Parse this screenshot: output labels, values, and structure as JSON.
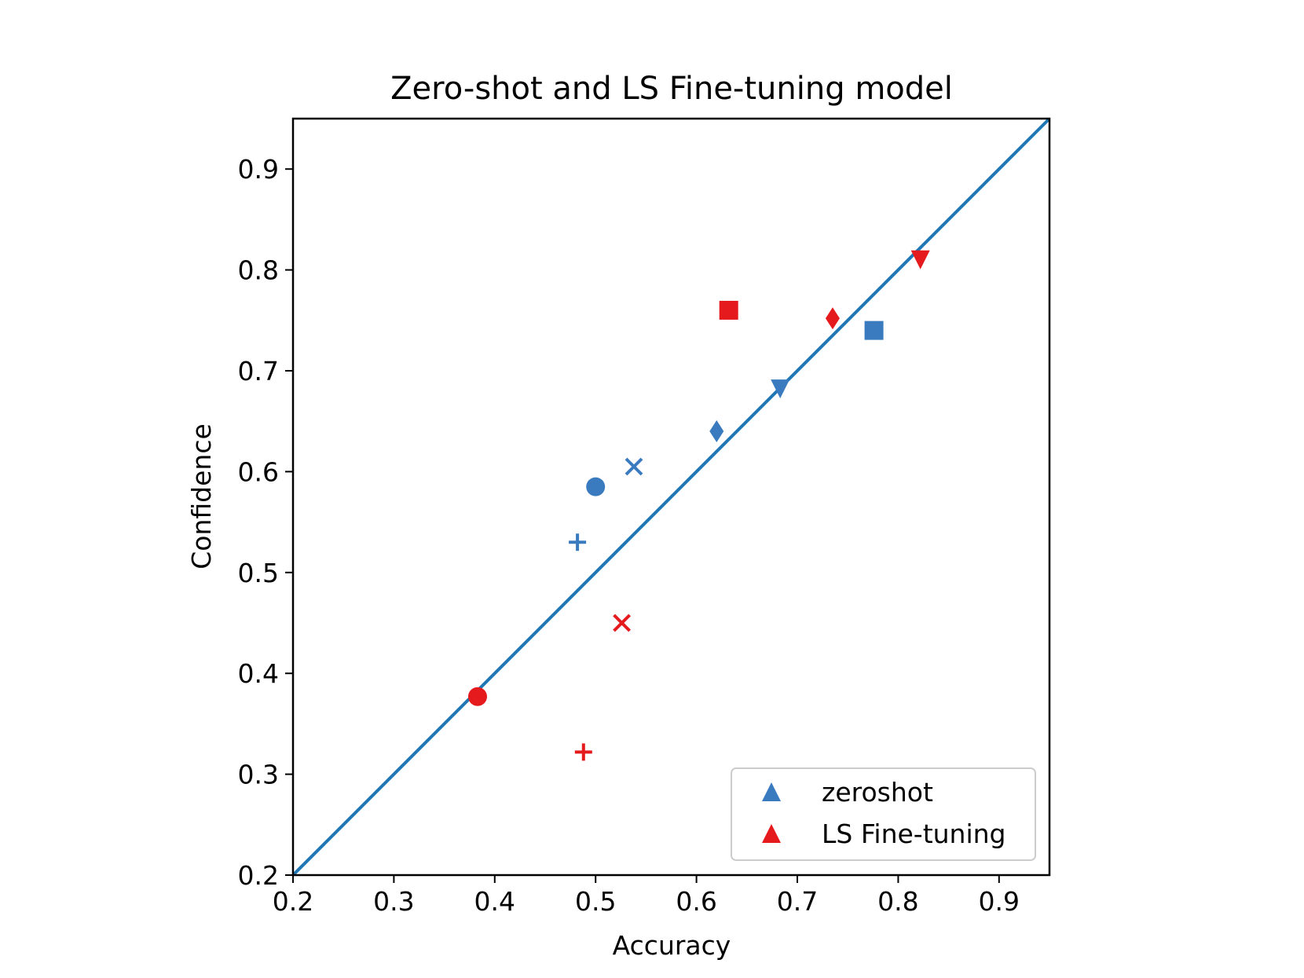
{
  "colors": {
    "zeroshot": "#3a7bbf",
    "ls_finetuning": "#e41a1c",
    "diagonal": "#1f77b4",
    "axes": "#000000",
    "legend_border": "#cccccc"
  },
  "chart_data": {
    "type": "scatter",
    "title": "Zero-shot and LS Fine-tuning model",
    "xlabel": "Accuracy",
    "ylabel": "Confidence",
    "xlim": [
      0.2,
      0.95
    ],
    "ylim": [
      0.2,
      0.95
    ],
    "xticks": [
      0.2,
      0.3,
      0.4,
      0.5,
      0.6,
      0.7,
      0.8,
      0.9
    ],
    "yticks": [
      0.2,
      0.3,
      0.4,
      0.5,
      0.6,
      0.7,
      0.8,
      0.9
    ],
    "xtick_labels": [
      "0.2",
      "0.3",
      "0.4",
      "0.5",
      "0.6",
      "0.7",
      "0.8",
      "0.9"
    ],
    "ytick_labels": [
      "0.2",
      "0.3",
      "0.4",
      "0.5",
      "0.6",
      "0.7",
      "0.8",
      "0.9"
    ],
    "grid": false,
    "reference_line": {
      "x": [
        0.2,
        0.95
      ],
      "y": [
        0.2,
        0.95
      ]
    },
    "legend_position": "lower-right",
    "series": [
      {
        "name": "zeroshot",
        "color_key": "zeroshot",
        "legend_marker": "triangle-up",
        "points": [
          {
            "x": 0.5,
            "y": 0.585,
            "marker": "circle"
          },
          {
            "x": 0.538,
            "y": 0.605,
            "marker": "x"
          },
          {
            "x": 0.482,
            "y": 0.53,
            "marker": "plus"
          },
          {
            "x": 0.62,
            "y": 0.64,
            "marker": "diamond"
          },
          {
            "x": 0.683,
            "y": 0.682,
            "marker": "triangle-down"
          },
          {
            "x": 0.776,
            "y": 0.74,
            "marker": "square"
          }
        ]
      },
      {
        "name": "LS Fine-tuning",
        "color_key": "ls_finetuning",
        "legend_marker": "triangle-up",
        "points": [
          {
            "x": 0.383,
            "y": 0.377,
            "marker": "circle"
          },
          {
            "x": 0.526,
            "y": 0.45,
            "marker": "x"
          },
          {
            "x": 0.488,
            "y": 0.322,
            "marker": "plus"
          },
          {
            "x": 0.632,
            "y": 0.76,
            "marker": "square"
          },
          {
            "x": 0.735,
            "y": 0.752,
            "marker": "diamond"
          },
          {
            "x": 0.822,
            "y": 0.81,
            "marker": "triangle-down"
          }
        ]
      }
    ]
  }
}
